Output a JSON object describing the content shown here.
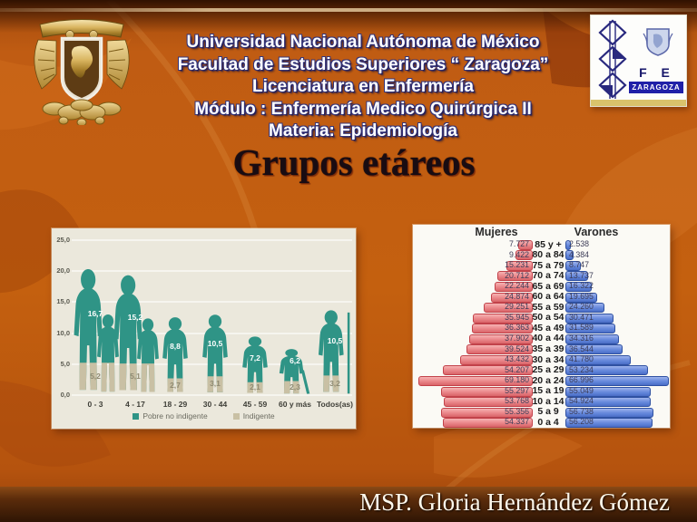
{
  "slide": {
    "header_lines": [
      "Universidad Nacional Autónoma de México",
      "Facultad de Estudios Superiores “ Zaragoza”",
      "Licenciatura en Enfermería",
      "Módulo : Enfermería Medico Quirúrgica II",
      "Materia: Epidemiología"
    ],
    "title": "Grupos etáreos",
    "footer": "MSP. Gloria Hernández Gómez"
  },
  "fes_logo": {
    "fes": "F E S",
    "zaragoza": "ZARAGOZA"
  },
  "colors": {
    "background_orange": "#bf5a11",
    "header_text": "#ffffff",
    "header_shadow_navy": "#2c2c6e",
    "title_text": "#190c12",
    "teal": "#2f9486",
    "beige": "#c9c0a4",
    "pyramid_pink": "#e8868a",
    "pyramid_blue": "#5b80d6",
    "chart_bg": "#ebe8dc",
    "pyramid_bg": "#fbfaf5"
  },
  "chart_data": [
    {
      "type": "bar",
      "subtype": "pictorial-stacked-silhouettes",
      "title": "",
      "xlabel": "",
      "ylabel": "",
      "categories": [
        "0 - 3",
        "4 - 17",
        "18 - 29",
        "30 - 44",
        "45 - 59",
        "60 y más",
        "Todos(as)"
      ],
      "series": [
        {
          "name": "Indigente",
          "color": "#c9c0a4",
          "values": [
            5.2,
            5.1,
            2.7,
            3.1,
            2.1,
            2.3,
            3.2
          ],
          "labels": [
            "5,2",
            "5,1",
            "2,7",
            "3,1",
            "2,1",
            "2,3",
            "3,2"
          ]
        },
        {
          "name": "Pobre no indigente",
          "color": "#2f9486",
          "values": [
            16.7,
            15.2,
            8.8,
            10.5,
            7.2,
            6.2,
            10.5
          ],
          "labels": [
            "16,7",
            "15,2",
            "8,8",
            "10,5",
            "7,2",
            "6,2",
            "10,5"
          ]
        }
      ],
      "ytick_labels": [
        "25,0",
        "20,0",
        "15,0",
        "10,0",
        "5,0",
        "0,0"
      ],
      "ylim": [
        0,
        25
      ],
      "grid": true,
      "legend_position": "bottom",
      "figure_tops": [
        21,
        20,
        13,
        13.5,
        9.8,
        8.8,
        14.2
      ],
      "figure_kinds": [
        "adult-child",
        "adult-child",
        "person",
        "person",
        "person",
        "elder-cane",
        "person-staff"
      ]
    },
    {
      "type": "bar",
      "subtype": "population-pyramid",
      "left_header": "Mujeres",
      "right_header": "Varones",
      "xmax_thousands": 70,
      "rows": [
        {
          "age": "85 y +",
          "mujeres": "7.727",
          "varones": "2.538"
        },
        {
          "age": "80 a 84",
          "mujeres": "9.422",
          "varones": "4.384"
        },
        {
          "age": "75 a 79",
          "mujeres": "15.231",
          "varones": "8.747"
        },
        {
          "age": "70 a 74",
          "mujeres": "20.712",
          "varones": "13.737"
        },
        {
          "age": "65 a 69",
          "mujeres": "22.244",
          "varones": "16.322"
        },
        {
          "age": "60 a 64",
          "mujeres": "24.874",
          "varones": "19.695"
        },
        {
          "age": "55 a 59",
          "mujeres": "29.251",
          "varones": "24.260"
        },
        {
          "age": "50 a 54",
          "mujeres": "35.945",
          "varones": "30.471"
        },
        {
          "age": "45 a 49",
          "mujeres": "36.363",
          "varones": "31.589"
        },
        {
          "age": "40 a 44",
          "mujeres": "37.902",
          "varones": "34.316"
        },
        {
          "age": "35 a 39",
          "mujeres": "39.524",
          "varones": "36.544"
        },
        {
          "age": "30 a 34",
          "mujeres": "43.432",
          "varones": "41.780"
        },
        {
          "age": "25 a 29",
          "mujeres": "54.207",
          "varones": "53.234"
        },
        {
          "age": "20 a 24",
          "mujeres": "69.180",
          "varones": "66.996"
        },
        {
          "age": "15 a 19",
          "mujeres": "55.297",
          "varones": "55.049"
        },
        {
          "age": "10 a 14",
          "mujeres": "53.768",
          "varones": "54.924"
        },
        {
          "age": "5 a 9",
          "mujeres": "55.356",
          "varones": "56.738"
        },
        {
          "age": "0 a 4",
          "mujeres": "54.337",
          "varones": "56.208"
        }
      ]
    }
  ]
}
